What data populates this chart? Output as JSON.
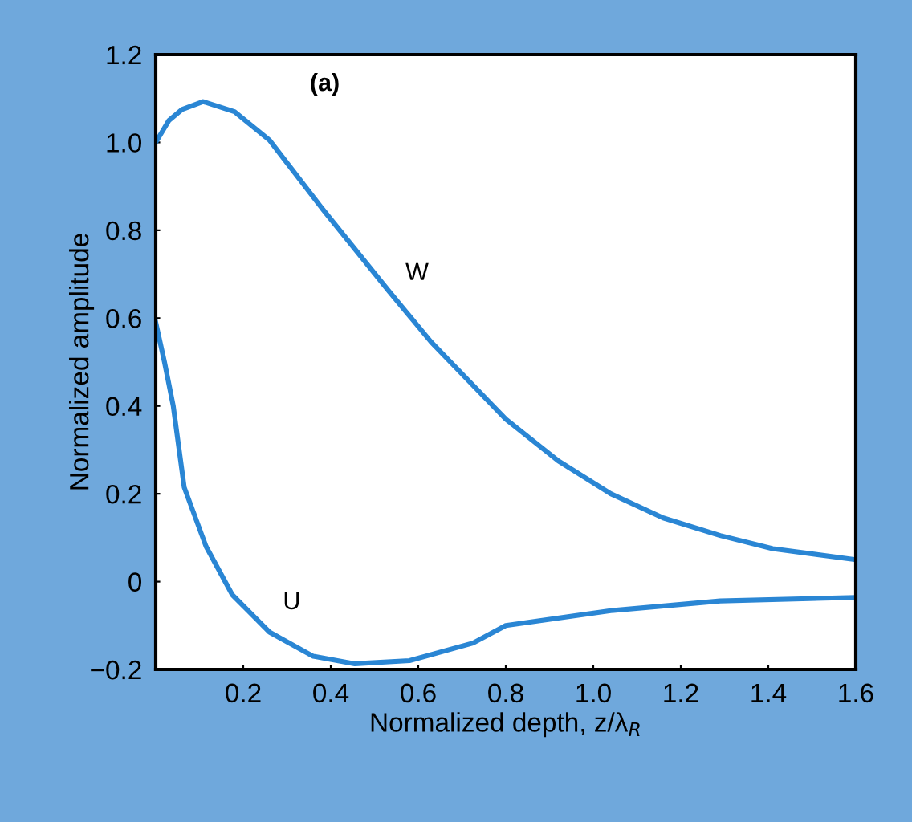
{
  "chart_data": {
    "type": "line",
    "xlabel": "Normalized depth, z/λ$_{R}$",
    "ylabel": "Normalized amplitude",
    "annotations": [
      "(a)"
    ],
    "xlim": [
      0,
      1.6
    ],
    "ylim": [
      -0.2,
      1.2
    ],
    "xticks": [
      {
        "value": 0,
        "label": null
      },
      0.2,
      0.4,
      0.6,
      0.8,
      {
        "value": 1,
        "label": "1.0"
      },
      1.2,
      1.4,
      1.6
    ],
    "yticks": [
      -0.2,
      0,
      0.2,
      0.4,
      0.6,
      0.8,
      {
        "value": 1,
        "label": "1.0"
      },
      1.2
    ],
    "grid": false,
    "legend": false,
    "marker": "none",
    "line_style": "solid",
    "series": [
      {
        "name": "W",
        "color": "#2a86d4",
        "x": [
          0,
          0.03,
          0.06,
          0.108,
          0.18,
          0.26,
          0.38,
          0.53,
          0.63,
          0.8,
          0.92,
          1.04,
          1.16,
          1.29,
          1.41,
          1.6
        ],
        "values": [
          1.0,
          1.05,
          1.075,
          1.093,
          1.07,
          1.005,
          0.85,
          0.665,
          0.545,
          0.37,
          0.275,
          0.2,
          0.145,
          0.105,
          0.075,
          0.05
        ]
      },
      {
        "name": "U",
        "color": "#2a86d4",
        "x": [
          0,
          0.02,
          0.04,
          0.065,
          0.115,
          0.175,
          0.26,
          0.36,
          0.455,
          0.58,
          0.725,
          0.8,
          1.04,
          1.29,
          1.6
        ],
        "values": [
          0.59,
          0.5,
          0.4,
          0.215,
          0.08,
          -0.03,
          -0.115,
          -0.17,
          -0.187,
          -0.18,
          -0.14,
          -0.1,
          -0.066,
          -0.044,
          -0.036
        ]
      }
    ]
  }
}
